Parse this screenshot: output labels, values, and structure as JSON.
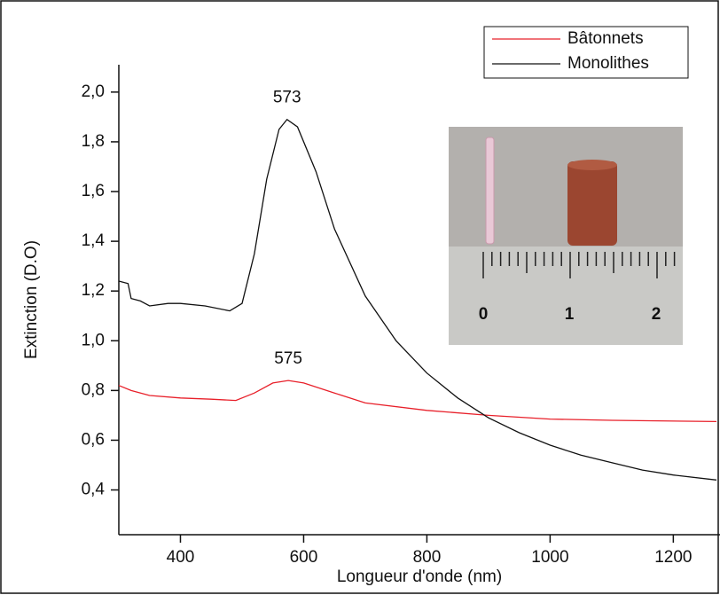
{
  "chart_data": {
    "type": "line",
    "x_label": "Longueur d'onde (nm)",
    "y_label": "Extinction (D.O)",
    "xlim": [
      300,
      1270
    ],
    "ylim": [
      0.22,
      2.11
    ],
    "xticks": [
      400,
      600,
      800,
      1000,
      1200
    ],
    "yticks": [
      {
        "value": 0.4,
        "label": "0,4"
      },
      {
        "value": 0.6,
        "label": "0,6"
      },
      {
        "value": 0.8,
        "label": "0,8"
      },
      {
        "value": 1.0,
        "label": "1,0"
      },
      {
        "value": 1.2,
        "label": "1,2"
      },
      {
        "value": 1.4,
        "label": "1,4"
      },
      {
        "value": 1.6,
        "label": "1,6"
      },
      {
        "value": 1.8,
        "label": "1,8"
      },
      {
        "value": 2.0,
        "label": "2,0"
      }
    ],
    "legend": "top-right",
    "series": [
      {
        "name": "Bâtonnets",
        "color": "#e8202a",
        "x": [
          300,
          320,
          350,
          400,
          450,
          490,
          520,
          550,
          575,
          600,
          650,
          700,
          800,
          900,
          1000,
          1100,
          1270
        ],
        "values": [
          0.82,
          0.8,
          0.78,
          0.77,
          0.765,
          0.76,
          0.79,
          0.83,
          0.84,
          0.83,
          0.79,
          0.75,
          0.72,
          0.7,
          0.685,
          0.68,
          0.675
        ]
      },
      {
        "name": "Monolithes",
        "color": "#111111",
        "x": [
          300,
          315,
          320,
          335,
          350,
          380,
          400,
          440,
          480,
          500,
          520,
          540,
          560,
          573,
          590,
          620,
          650,
          700,
          750,
          800,
          850,
          900,
          950,
          1000,
          1050,
          1100,
          1150,
          1200,
          1270
        ],
        "values": [
          1.24,
          1.23,
          1.17,
          1.16,
          1.14,
          1.15,
          1.15,
          1.14,
          1.12,
          1.15,
          1.35,
          1.65,
          1.85,
          1.89,
          1.86,
          1.68,
          1.45,
          1.18,
          1.0,
          0.87,
          0.77,
          0.69,
          0.63,
          0.58,
          0.54,
          0.51,
          0.48,
          0.46,
          0.44
        ]
      }
    ],
    "annotations": [
      {
        "text": "573",
        "x": 573,
        "y": 1.89
      },
      {
        "text": "575",
        "x": 575,
        "y": 0.84
      }
    ]
  },
  "inset": {
    "ruler_labels": [
      "0",
      "1",
      "2"
    ]
  }
}
